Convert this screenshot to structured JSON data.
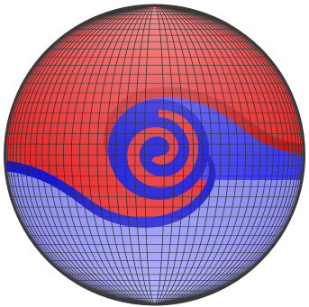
{
  "colors": {
    "background": "#ffffff",
    "pale_red": "#f2a2a2",
    "light_red": "#f06a6a",
    "red": "#e82a2a",
    "deep_red": "#c81818",
    "pale_blue": "#b2b2f8",
    "light_blue": "#8c8cf0",
    "blue": "#3c3cf0",
    "deep_blue": "#1212d8",
    "grid_line": "#333333",
    "rim": "#3a3a3a"
  },
  "icons": {
    "subject": "sphere-with-swirl-icon"
  }
}
